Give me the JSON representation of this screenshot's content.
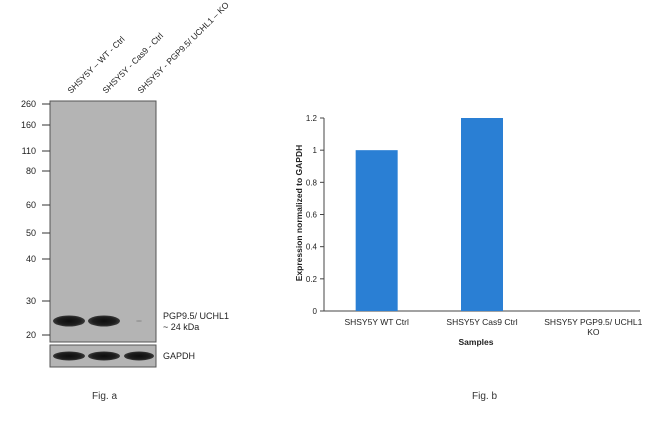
{
  "fig_a": {
    "caption": "Fig. a",
    "lane_labels": [
      "SHSY5Y – WT - Ctrl",
      "SHSY5Y - Cas9 - Ctrl",
      "SHSY5Y - PGP9.5/ UCHL1 – KO"
    ],
    "markers": [
      "260",
      "160",
      "110",
      "80",
      "60",
      "50",
      "40",
      "30",
      "20"
    ],
    "band_label_line1": "PGP9.5/ UCHL1",
    "band_label_line2": "~ 24 kDa",
    "loading_label": "GAPDH",
    "target_band_present": [
      true,
      true,
      false
    ],
    "loading_band_present": [
      true,
      true,
      true
    ]
  },
  "fig_b": {
    "caption": "Fig. b"
  },
  "colors": {
    "bar": "#2a7fd4",
    "blot_bg": "#b4b4b4",
    "band": "#1c1c1c"
  },
  "chart_data": {
    "type": "bar",
    "categories": [
      "SHSY5Y WT Ctrl",
      "SHSY5Y Cas9 Ctrl",
      "SHSY5Y PGP9.5/ UCHL1 KO"
    ],
    "values": [
      1.0,
      1.2,
      0
    ],
    "xlabel": "Samples",
    "ylabel": "Expression  normalized to GAPDH",
    "yticks": [
      "0",
      "0.2",
      "0.4",
      "0.6",
      "0.8",
      "1",
      "1.2"
    ],
    "ylim": [
      0,
      1.2
    ],
    "grid": false,
    "legend": "none"
  }
}
